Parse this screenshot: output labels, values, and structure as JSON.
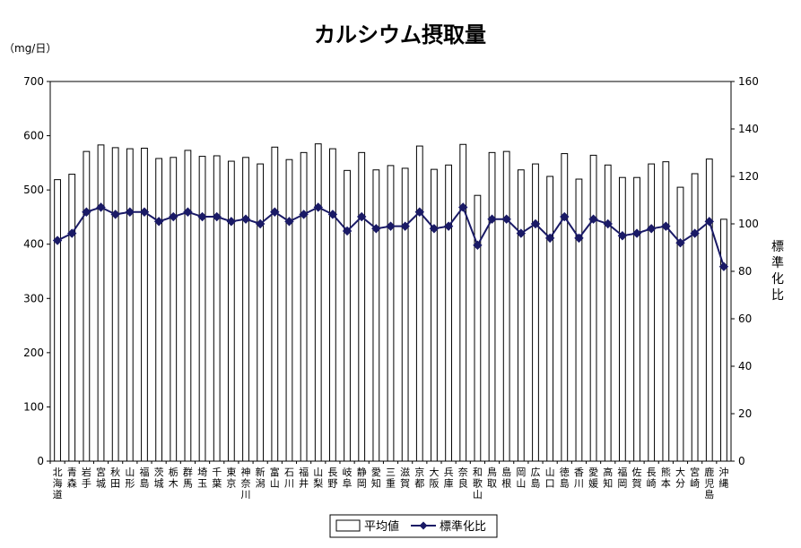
{
  "chart_data": {
    "type": "bar",
    "title": "カルシウム摂取量",
    "left_unit": "（mg/日）",
    "right_axis_label": "標準化比",
    "ylim": [
      0,
      700
    ],
    "yticks": [
      0,
      100,
      200,
      300,
      400,
      500,
      600,
      700
    ],
    "y2lim": [
      0,
      160
    ],
    "y2ticks": [
      0,
      20,
      40,
      60,
      80,
      100,
      120,
      140,
      160
    ],
    "grid": false,
    "legend_position": "bottom",
    "categories": [
      "北海道",
      "青森",
      "岩手",
      "宮城",
      "秋田",
      "山形",
      "福島",
      "茨城",
      "栃木",
      "群馬",
      "埼玉",
      "千葉",
      "東京",
      "神奈川",
      "新潟",
      "富山",
      "石川",
      "福井",
      "山梨",
      "長野",
      "岐阜",
      "静岡",
      "愛知",
      "三重",
      "滋賀",
      "京都",
      "大阪",
      "兵庫",
      "奈良",
      "和歌山",
      "鳥取",
      "島根",
      "岡山",
      "広島",
      "山口",
      "徳島",
      "香川",
      "愛媛",
      "高知",
      "福岡",
      "佐賀",
      "長崎",
      "熊本",
      "大分",
      "宮崎",
      "鹿児島",
      "沖縄"
    ],
    "series": [
      {
        "name": "平均値",
        "type": "bar",
        "axis": "left",
        "color": "#ffffff",
        "values": [
          519,
          529,
          571,
          583,
          578,
          576,
          577,
          558,
          560,
          573,
          562,
          563,
          553,
          560,
          548,
          579,
          556,
          569,
          585,
          576,
          536,
          569,
          537,
          545,
          540,
          581,
          538,
          546,
          584,
          490,
          569,
          571,
          537,
          548,
          525,
          567,
          520,
          564,
          546,
          523,
          523,
          548,
          552,
          505,
          530,
          557,
          446
        ]
      },
      {
        "name": "標準化比",
        "type": "line",
        "axis": "right",
        "color": "#1a1a66",
        "values": [
          93,
          96,
          105,
          107,
          104,
          105,
          105,
          101,
          103,
          105,
          103,
          103,
          101,
          102,
          100,
          105,
          101,
          104,
          107,
          104,
          97,
          103,
          98,
          99,
          99,
          105,
          98,
          99,
          107,
          91,
          102,
          102,
          96,
          100,
          94,
          103,
          94,
          102,
          100,
          95,
          96,
          98,
          99,
          92,
          96,
          101,
          82
        ]
      }
    ]
  }
}
